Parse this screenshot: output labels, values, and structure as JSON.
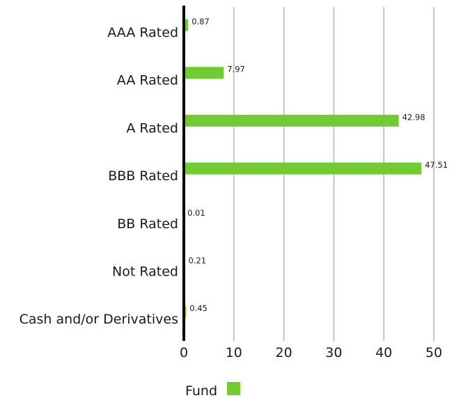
{
  "chart_data": {
    "type": "bar",
    "orientation": "horizontal",
    "title": "",
    "xlabel": "",
    "ylabel": "",
    "categories": [
      "AAA Rated",
      "AA Rated",
      "A Rated",
      "BBB Rated",
      "BB Rated",
      "Not Rated",
      "Cash and/or Derivatives"
    ],
    "series": [
      {
        "name": "Fund",
        "values": [
          0.87,
          7.97,
          42.98,
          47.51,
          0.01,
          0.21,
          0.45
        ],
        "color": "#72cb32"
      }
    ],
    "data_labels": [
      "0.87",
      "7.97",
      "42.98",
      "47.51",
      "0.01",
      "0.21",
      "0.45"
    ],
    "xlim": [
      0,
      50
    ],
    "xticks": [
      "0",
      "10",
      "20",
      "30",
      "40",
      "50"
    ],
    "grid": "vertical",
    "gridline_color": "#c4c4c4",
    "axis_color": "#000000",
    "legend": {
      "position": "bottom",
      "label": "Fund"
    }
  }
}
